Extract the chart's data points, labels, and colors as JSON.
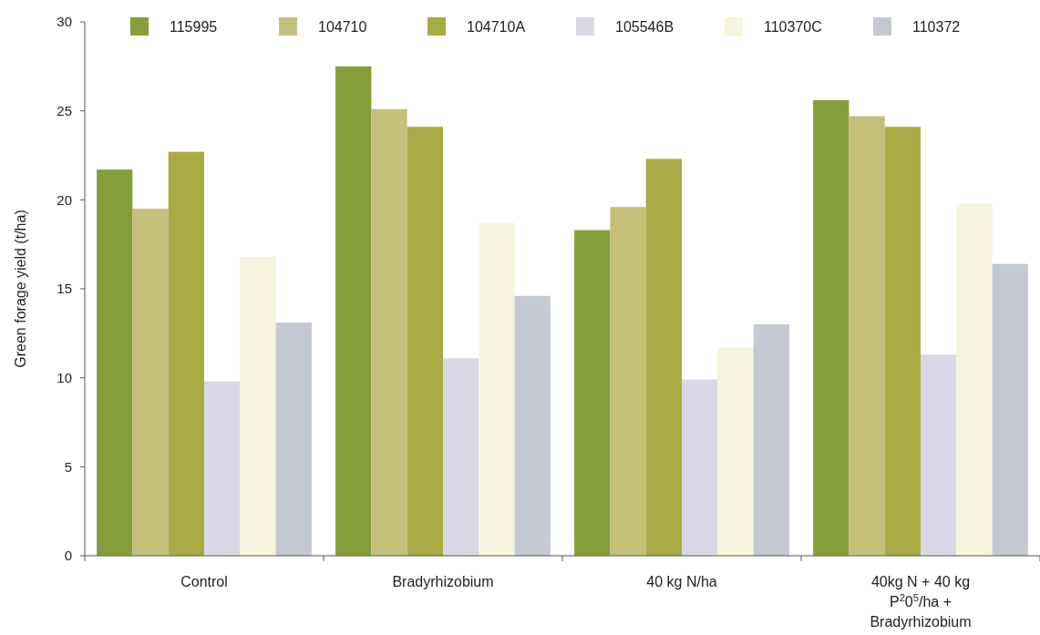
{
  "chart_data": {
    "type": "bar",
    "ylabel": "Green forage yield (t/ha)",
    "categories": [
      "Control",
      "Bradyrhizobium",
      "40 kg N/ha",
      "40kg N + 40 kg P$^{2}$0$^{5}$/ha + Bradyrhizobium"
    ],
    "series": [
      {
        "name": "115995",
        "color": "#869e3a",
        "values": [
          21.7,
          27.5,
          18.3,
          25.6
        ]
      },
      {
        "name": "104710",
        "color": "#c4c07a",
        "values": [
          19.5,
          25.1,
          19.6,
          24.7
        ]
      },
      {
        "name": "104710A",
        "color": "#aaaa45",
        "values": [
          22.7,
          24.1,
          22.3,
          24.1
        ]
      },
      {
        "name": "105546B",
        "color": "#d9d8e6",
        "values": [
          9.8,
          11.1,
          9.9,
          11.3
        ]
      },
      {
        "name": "110370C",
        "color": "#f5f4dc",
        "values": [
          16.8,
          18.7,
          11.7,
          19.8
        ]
      },
      {
        "name": "110372",
        "color": "#c4c8d0",
        "values": [
          13.1,
          14.6,
          13.0,
          16.4
        ]
      }
    ],
    "ylim": [
      0,
      30
    ],
    "yticks": [
      0,
      5,
      10,
      15,
      20,
      25,
      30
    ],
    "grid": false,
    "legend": "top"
  }
}
